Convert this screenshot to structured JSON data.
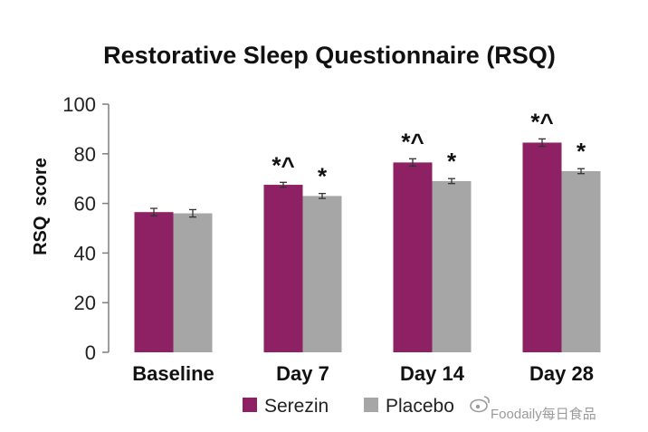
{
  "chart_data": {
    "type": "bar",
    "title": "Restorative Sleep Questionnaire (RSQ)",
    "ylabel": "RSQ  score",
    "xlabel": "",
    "ylim": [
      0,
      100
    ],
    "yticks": [
      0,
      20,
      40,
      60,
      80,
      100
    ],
    "grid": false,
    "legend_position": "bottom",
    "categories": [
      "Baseline",
      "Day 7",
      "Day 14",
      "Day 28"
    ],
    "series": [
      {
        "name": "Serezin",
        "color": "#8e2163",
        "values": [
          56.5,
          67.5,
          76.5,
          84.5
        ],
        "error": [
          1.5,
          1.0,
          1.5,
          1.5
        ],
        "annotations": [
          "",
          "*^",
          "*^",
          "*^"
        ]
      },
      {
        "name": "Placebo",
        "color": "#a6a6a6",
        "values": [
          56,
          63,
          69,
          73
        ],
        "error": [
          1.5,
          1.0,
          1.0,
          1.0
        ],
        "annotations": [
          "",
          "*",
          "*",
          "*"
        ]
      }
    ]
  },
  "watermark": {
    "text": "Foodaily每日食品",
    "icon": "weibo-icon"
  }
}
